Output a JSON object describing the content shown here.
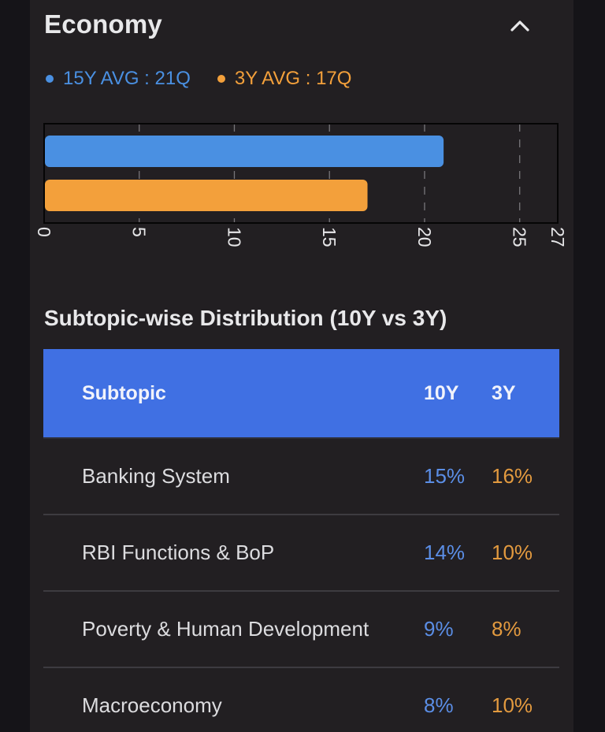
{
  "section": {
    "title": "Economy",
    "collapse_icon": "chevron-up-icon"
  },
  "legend": {
    "items": [
      {
        "label": "15Y AVG : 21Q",
        "color": "#4a90e2"
      },
      {
        "label": "3Y AVG : 17Q",
        "color": "#f3a03b"
      }
    ]
  },
  "chart_data": {
    "type": "bar",
    "orientation": "horizontal",
    "series": [
      {
        "name": "15Y AVG",
        "value": 21,
        "color": "#4a90e2"
      },
      {
        "name": "3Y AVG",
        "value": 17,
        "color": "#f3a03b"
      }
    ],
    "xlim": [
      0,
      27
    ],
    "ticks": [
      0,
      5,
      10,
      15,
      20,
      25,
      27
    ],
    "grid": true
  },
  "distribution": {
    "title": "Subtopic-wise Distribution (10Y vs 3Y)",
    "headers": {
      "subtopic": "Subtopic",
      "ten_year": "10Y",
      "three_year": "3Y"
    },
    "rows": [
      {
        "subtopic": "Banking System",
        "ten_year": "15%",
        "three_year": "16%"
      },
      {
        "subtopic": "RBI Functions & BoP",
        "ten_year": "14%",
        "three_year": "10%"
      },
      {
        "subtopic": "Poverty & Human Development",
        "ten_year": "9%",
        "three_year": "8%"
      },
      {
        "subtopic": "Macroeconomy",
        "ten_year": "8%",
        "three_year": "10%"
      }
    ]
  }
}
